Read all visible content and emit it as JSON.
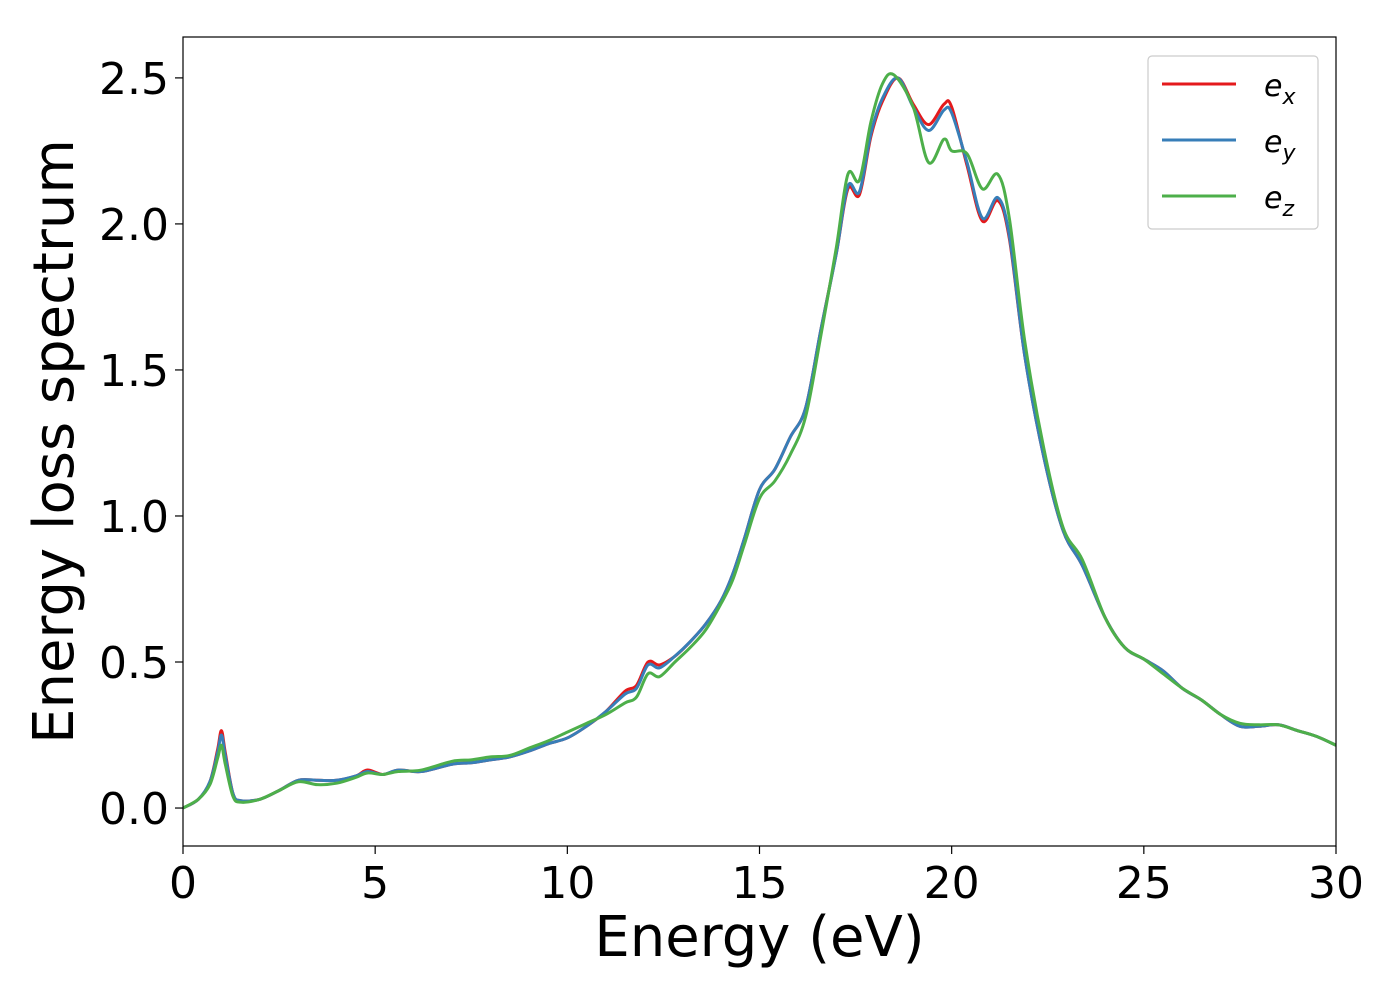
{
  "chart_data": {
    "type": "line",
    "title": "",
    "xlabel": "Energy (eV)",
    "ylabel": "Energy loss spectrum",
    "xlim": [
      0,
      30
    ],
    "ylim": [
      -0.13,
      2.64
    ],
    "xticks": [
      0,
      5,
      10,
      15,
      20,
      25,
      30
    ],
    "xtick_labels": [
      "0",
      "5",
      "10",
      "15",
      "20",
      "25",
      "30"
    ],
    "yticks": [
      0.0,
      0.5,
      1.0,
      1.5,
      2.0,
      2.5
    ],
    "ytick_labels": [
      "0.0",
      "0.5",
      "1.0",
      "1.5",
      "2.0",
      "2.5"
    ],
    "grid": false,
    "legend_position": "top-right",
    "series": [
      {
        "name": "e_x",
        "label_base": "e",
        "label_sub": "x",
        "color": "#e41a1c",
        "points": [
          [
            0,
            0
          ],
          [
            0.4,
            0.03
          ],
          [
            0.7,
            0.09
          ],
          [
            0.9,
            0.2
          ],
          [
            1.0,
            0.265
          ],
          [
            1.1,
            0.19
          ],
          [
            1.3,
            0.05
          ],
          [
            1.5,
            0.025
          ],
          [
            2.0,
            0.03
          ],
          [
            2.5,
            0.06
          ],
          [
            3.0,
            0.095
          ],
          [
            3.5,
            0.095
          ],
          [
            4.0,
            0.095
          ],
          [
            4.5,
            0.11
          ],
          [
            4.8,
            0.13
          ],
          [
            5.2,
            0.115
          ],
          [
            5.6,
            0.13
          ],
          [
            6.2,
            0.125
          ],
          [
            7.0,
            0.15
          ],
          [
            7.5,
            0.155
          ],
          [
            8.0,
            0.165
          ],
          [
            8.5,
            0.175
          ],
          [
            9.0,
            0.195
          ],
          [
            9.5,
            0.22
          ],
          [
            10.0,
            0.24
          ],
          [
            10.5,
            0.28
          ],
          [
            11.0,
            0.33
          ],
          [
            11.5,
            0.4
          ],
          [
            11.8,
            0.42
          ],
          [
            12.1,
            0.5
          ],
          [
            12.4,
            0.49
          ],
          [
            12.8,
            0.52
          ],
          [
            13.2,
            0.57
          ],
          [
            13.6,
            0.63
          ],
          [
            14.0,
            0.71
          ],
          [
            14.3,
            0.8
          ],
          [
            14.6,
            0.92
          ],
          [
            15.0,
            1.09
          ],
          [
            15.4,
            1.16
          ],
          [
            15.8,
            1.27
          ],
          [
            16.2,
            1.37
          ],
          [
            16.6,
            1.64
          ],
          [
            17.0,
            1.9
          ],
          [
            17.3,
            2.12
          ],
          [
            17.6,
            2.1
          ],
          [
            17.9,
            2.3
          ],
          [
            18.2,
            2.42
          ],
          [
            18.6,
            2.5
          ],
          [
            19.0,
            2.41
          ],
          [
            19.4,
            2.34
          ],
          [
            19.8,
            2.41
          ],
          [
            20.0,
            2.4
          ],
          [
            20.4,
            2.2
          ],
          [
            20.8,
            2.01
          ],
          [
            21.2,
            2.08
          ],
          [
            21.5,
            1.95
          ],
          [
            21.9,
            1.55
          ],
          [
            22.4,
            1.2
          ],
          [
            22.9,
            0.95
          ],
          [
            23.4,
            0.83
          ],
          [
            24.0,
            0.65
          ],
          [
            24.5,
            0.55
          ],
          [
            25.0,
            0.51
          ],
          [
            25.5,
            0.47
          ],
          [
            26.0,
            0.41
          ],
          [
            26.5,
            0.37
          ],
          [
            27.0,
            0.32
          ],
          [
            27.5,
            0.28
          ],
          [
            28.0,
            0.28
          ],
          [
            28.5,
            0.285
          ],
          [
            29.0,
            0.265
          ],
          [
            29.5,
            0.245
          ],
          [
            30.0,
            0.215
          ]
        ]
      },
      {
        "name": "e_y",
        "label_base": "e",
        "label_sub": "y",
        "color": "#377eb8",
        "points": [
          [
            0,
            0
          ],
          [
            0.4,
            0.03
          ],
          [
            0.7,
            0.09
          ],
          [
            0.9,
            0.19
          ],
          [
            1.0,
            0.25
          ],
          [
            1.1,
            0.18
          ],
          [
            1.3,
            0.05
          ],
          [
            1.5,
            0.025
          ],
          [
            2.0,
            0.03
          ],
          [
            2.5,
            0.06
          ],
          [
            3.0,
            0.095
          ],
          [
            3.5,
            0.095
          ],
          [
            4.0,
            0.095
          ],
          [
            4.5,
            0.11
          ],
          [
            4.8,
            0.125
          ],
          [
            5.2,
            0.115
          ],
          [
            5.6,
            0.13
          ],
          [
            6.2,
            0.125
          ],
          [
            7.0,
            0.15
          ],
          [
            7.5,
            0.155
          ],
          [
            8.0,
            0.165
          ],
          [
            8.5,
            0.175
          ],
          [
            9.0,
            0.195
          ],
          [
            9.5,
            0.22
          ],
          [
            10.0,
            0.24
          ],
          [
            10.5,
            0.28
          ],
          [
            11.0,
            0.33
          ],
          [
            11.5,
            0.39
          ],
          [
            11.8,
            0.41
          ],
          [
            12.1,
            0.49
          ],
          [
            12.4,
            0.48
          ],
          [
            12.8,
            0.52
          ],
          [
            13.2,
            0.57
          ],
          [
            13.6,
            0.63
          ],
          [
            14.0,
            0.71
          ],
          [
            14.3,
            0.8
          ],
          [
            14.6,
            0.92
          ],
          [
            15.0,
            1.09
          ],
          [
            15.4,
            1.16
          ],
          [
            15.8,
            1.27
          ],
          [
            16.2,
            1.37
          ],
          [
            16.6,
            1.64
          ],
          [
            17.0,
            1.9
          ],
          [
            17.3,
            2.13
          ],
          [
            17.6,
            2.11
          ],
          [
            17.9,
            2.31
          ],
          [
            18.2,
            2.43
          ],
          [
            18.6,
            2.5
          ],
          [
            19.0,
            2.4
          ],
          [
            19.4,
            2.32
          ],
          [
            19.8,
            2.39
          ],
          [
            20.0,
            2.38
          ],
          [
            20.4,
            2.21
          ],
          [
            20.8,
            2.02
          ],
          [
            21.2,
            2.09
          ],
          [
            21.5,
            1.96
          ],
          [
            21.9,
            1.55
          ],
          [
            22.4,
            1.2
          ],
          [
            22.9,
            0.95
          ],
          [
            23.4,
            0.83
          ],
          [
            24.0,
            0.65
          ],
          [
            24.5,
            0.55
          ],
          [
            25.0,
            0.51
          ],
          [
            25.5,
            0.47
          ],
          [
            26.0,
            0.41
          ],
          [
            26.5,
            0.37
          ],
          [
            27.0,
            0.32
          ],
          [
            27.5,
            0.28
          ],
          [
            28.0,
            0.28
          ],
          [
            28.5,
            0.285
          ],
          [
            29.0,
            0.265
          ],
          [
            29.5,
            0.245
          ],
          [
            30.0,
            0.215
          ]
        ]
      },
      {
        "name": "e_z",
        "label_base": "e",
        "label_sub": "z",
        "color": "#4daf4a",
        "points": [
          [
            0,
            0
          ],
          [
            0.4,
            0.03
          ],
          [
            0.7,
            0.08
          ],
          [
            0.9,
            0.17
          ],
          [
            1.0,
            0.215
          ],
          [
            1.1,
            0.15
          ],
          [
            1.3,
            0.04
          ],
          [
            1.5,
            0.02
          ],
          [
            2.0,
            0.03
          ],
          [
            2.5,
            0.06
          ],
          [
            3.0,
            0.09
          ],
          [
            3.5,
            0.08
          ],
          [
            4.0,
            0.085
          ],
          [
            4.5,
            0.105
          ],
          [
            4.8,
            0.12
          ],
          [
            5.2,
            0.115
          ],
          [
            5.6,
            0.125
          ],
          [
            6.2,
            0.13
          ],
          [
            7.0,
            0.16
          ],
          [
            7.5,
            0.165
          ],
          [
            8.0,
            0.175
          ],
          [
            8.5,
            0.18
          ],
          [
            9.0,
            0.205
          ],
          [
            9.5,
            0.23
          ],
          [
            10.0,
            0.26
          ],
          [
            10.5,
            0.29
          ],
          [
            11.0,
            0.32
          ],
          [
            11.5,
            0.36
          ],
          [
            11.8,
            0.38
          ],
          [
            12.1,
            0.46
          ],
          [
            12.4,
            0.45
          ],
          [
            12.8,
            0.5
          ],
          [
            13.2,
            0.55
          ],
          [
            13.6,
            0.61
          ],
          [
            14.0,
            0.7
          ],
          [
            14.3,
            0.78
          ],
          [
            14.6,
            0.9
          ],
          [
            15.0,
            1.06
          ],
          [
            15.4,
            1.12
          ],
          [
            15.8,
            1.21
          ],
          [
            16.2,
            1.34
          ],
          [
            16.6,
            1.62
          ],
          [
            17.0,
            1.92
          ],
          [
            17.3,
            2.17
          ],
          [
            17.6,
            2.15
          ],
          [
            17.9,
            2.35
          ],
          [
            18.2,
            2.48
          ],
          [
            18.5,
            2.51
          ],
          [
            19.0,
            2.4
          ],
          [
            19.4,
            2.21
          ],
          [
            19.8,
            2.29
          ],
          [
            20.0,
            2.25
          ],
          [
            20.4,
            2.24
          ],
          [
            20.8,
            2.12
          ],
          [
            21.2,
            2.17
          ],
          [
            21.5,
            2.02
          ],
          [
            21.9,
            1.6
          ],
          [
            22.4,
            1.23
          ],
          [
            22.9,
            0.96
          ],
          [
            23.4,
            0.85
          ],
          [
            24.0,
            0.65
          ],
          [
            24.5,
            0.55
          ],
          [
            25.0,
            0.51
          ],
          [
            25.5,
            0.46
          ],
          [
            26.0,
            0.41
          ],
          [
            26.5,
            0.37
          ],
          [
            27.0,
            0.32
          ],
          [
            27.5,
            0.29
          ],
          [
            28.0,
            0.285
          ],
          [
            28.5,
            0.285
          ],
          [
            29.0,
            0.265
          ],
          [
            29.5,
            0.245
          ],
          [
            30.0,
            0.215
          ]
        ]
      }
    ]
  }
}
